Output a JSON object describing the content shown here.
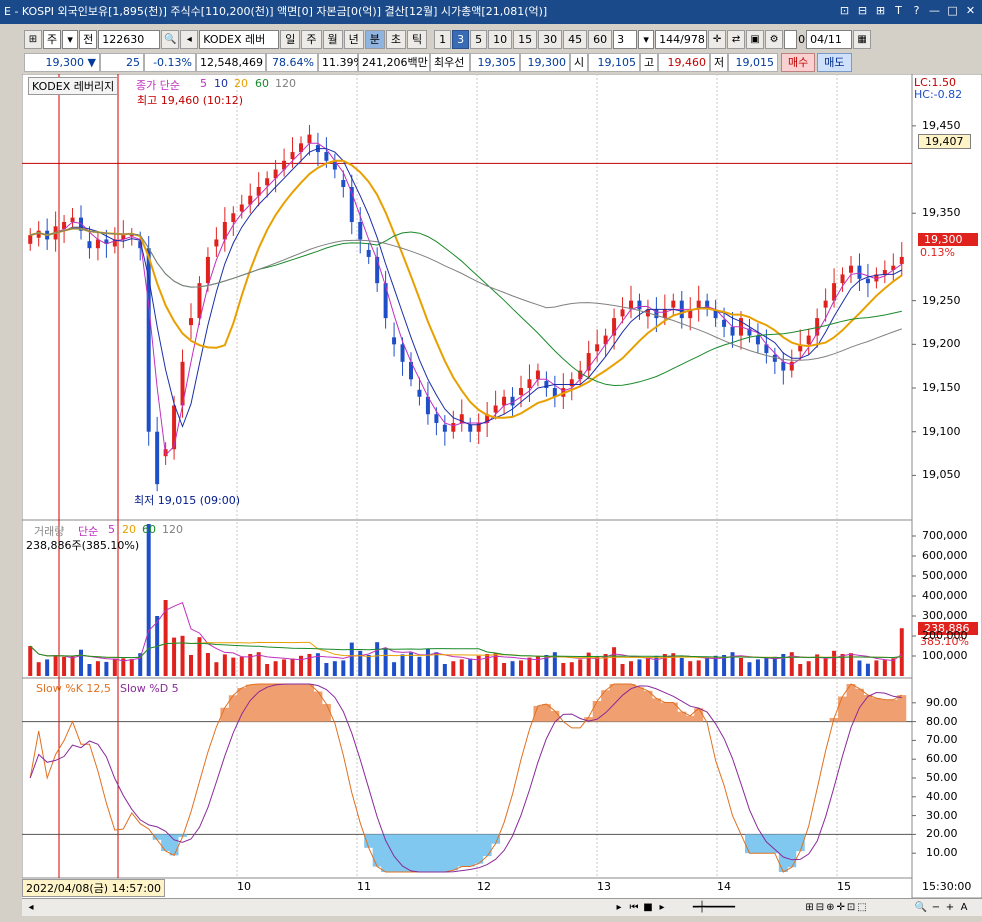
{
  "window": {
    "title": "E - KOSPI 외국인보유[1,895(천)] 주식수[110,200(천)] 액면[0] 자본금[0(억)] 결산[12월] 시가총액[21,081(억)]",
    "buttons": [
      "⊡",
      "⊟",
      "⊞",
      "T",
      "?",
      "—",
      "□",
      "✕"
    ]
  },
  "toolbar": {
    "market": "주",
    "code_prefix": "전",
    "code": "122630",
    "name": "KODEX 레버",
    "periods": [
      "일",
      "주",
      "월",
      "년",
      "분",
      "초",
      "틱"
    ],
    "selected_period": "분",
    "intervals": [
      "1",
      "3",
      "5",
      "10",
      "15",
      "30",
      "45",
      "60"
    ],
    "selected_interval": "3",
    "interval_input": "3",
    "count": "144/978",
    "date": "04/11",
    "checkbox_label": "0"
  },
  "quote": {
    "price": "19,300",
    "arrow": "▼",
    "change": "25",
    "rate": "-0.13%",
    "volume": "12,548,469",
    "pct1": "78.64%",
    "pct2": "11.39%",
    "amount": "241,206백만",
    "best_bid_label": "최우선",
    "best_bid1": "19,305",
    "best_bid2": "19,300",
    "open_label": "시",
    "open": "19,105",
    "high_label": "고",
    "high": "19,460",
    "low_label": "저",
    "low": "19,015",
    "buy": "매수",
    "sell": "매도"
  },
  "price_panel": {
    "name": "KODEX 레버리지",
    "ma_label": "종가 단순",
    "ma_periods": [
      "5",
      "10",
      "20",
      "60",
      "120"
    ],
    "high_annotation": "최고 19,460 (10:12)",
    "low_annotation": "최저 19,015 (09:00)",
    "lc": "LC:1.50",
    "hc": "HC:-0.82",
    "ref_price": "19,407",
    "cur_price": "19,300",
    "cur_rate": "0.13%",
    "y_ticks": [
      "19,450",
      "19,350",
      "19,300",
      "19,250",
      "19,200",
      "19,150",
      "19,100",
      "19,050"
    ]
  },
  "volume_panel": {
    "name": "거래량",
    "ma_label": "단순",
    "ma_periods": [
      "5",
      "20",
      "60",
      "120"
    ],
    "value": "238,886주(385.10%)",
    "cur_value": "238,886",
    "cur_rate": "385.10%",
    "y_ticks": [
      "700,000",
      "600,000",
      "500,000",
      "400,000",
      "300,000",
      "200,000",
      "100,000"
    ]
  },
  "stoch_panel": {
    "k_label": "Slow %K 12,5",
    "d_label": "Slow %D 5",
    "y_ticks": [
      "90.00",
      "80.00",
      "70.00",
      "60.00",
      "50.00",
      "40.00",
      "30.00",
      "20.00",
      "10.00"
    ]
  },
  "x_axis": {
    "cursor_label": "2022/04/08(금) 14:57:00",
    "ticks": [
      "10",
      "11",
      "12",
      "13",
      "14",
      "15"
    ],
    "end_label": "15:30:00"
  },
  "colors": {
    "up": "#e0221e",
    "down": "#1e4fc8",
    "ma5": "#c030c0",
    "ma10": "#1a2ea8",
    "ma20": "#e8a000",
    "ma60": "#1a8a2a",
    "ma120": "#808080",
    "stochK": "#e07020",
    "stochD": "#8a2a9a"
  },
  "chart_data": {
    "type": "candlestick",
    "title": "KODEX 레버리지",
    "interval": "3분",
    "ylim": [
      19015,
      19460
    ],
    "x": [
      "10",
      "11",
      "12",
      "13",
      "14",
      "15"
    ],
    "close_series": [
      19325,
      19330,
      19320,
      19335,
      19340,
      19345,
      19330,
      19310,
      19320,
      19315,
      19320,
      19325,
      19325,
      19310,
      19100,
      19040,
      19080,
      19130,
      19180,
      19230,
      19270,
      19300,
      19320,
      19340,
      19350,
      19360,
      19370,
      19380,
      19390,
      19400,
      19410,
      19420,
      19430,
      19440,
      19420,
      19410,
      19400,
      19380,
      19340,
      19320,
      19300,
      19270,
      19230,
      19200,
      19180,
      19160,
      19140,
      19120,
      19110,
      19100,
      19110,
      19120,
      19100,
      19110,
      19120,
      19130,
      19140,
      19130,
      19150,
      19160,
      19170,
      19150,
      19140,
      19150,
      19160,
      19170,
      19190,
      19200,
      19210,
      19230,
      19240,
      19250,
      19240,
      19240,
      19230,
      19240,
      19250,
      19230,
      19240,
      19250,
      19240,
      19230,
      19220,
      19210,
      19230,
      19210,
      19200,
      19190,
      19180,
      19170,
      19180,
      19200,
      19210,
      19230,
      19250,
      19270,
      19280,
      19290,
      19275,
      19270,
      19280,
      19285,
      19290,
      19300
    ]
  }
}
